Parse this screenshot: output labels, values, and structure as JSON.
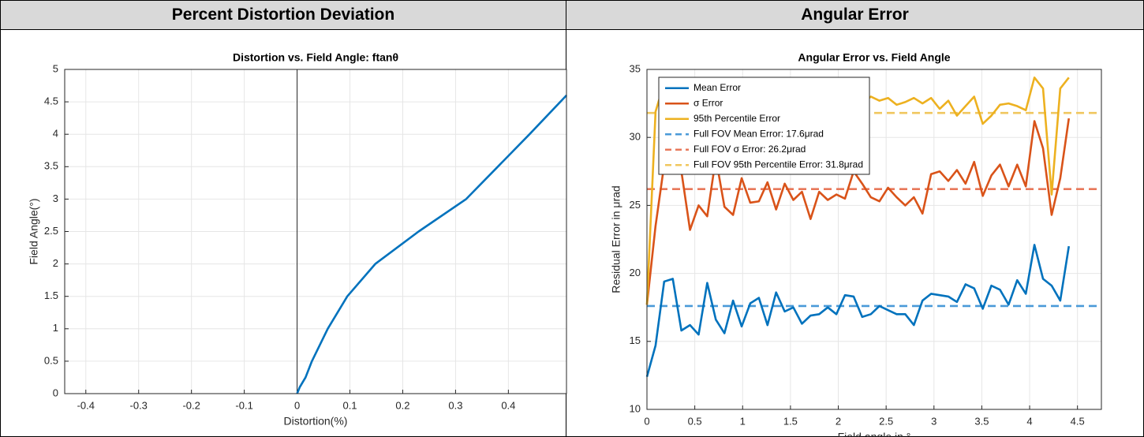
{
  "headers": [
    "Percent Distortion Deviation",
    "Angular Error"
  ],
  "chart_data": [
    {
      "type": "line",
      "title": "Distortion vs. Field Angle: ftanθ",
      "xlabel": "Distortion(%)",
      "ylabel": "Field Angle(°)",
      "x": [
        0,
        0.005,
        0.016,
        0.028,
        0.058,
        0.095,
        0.148,
        0.23,
        0.32,
        0.38,
        0.44,
        0.51
      ],
      "series": [
        {
          "color": "#0072bd",
          "values": [
            0,
            0.1,
            0.25,
            0.5,
            1,
            1.5,
            2,
            2.5,
            3,
            3.5,
            4,
            4.6
          ]
        }
      ],
      "xlim": [
        -0.44,
        0.51
      ],
      "xticks": [
        -0.4,
        -0.3,
        -0.2,
        -0.1,
        0,
        0.1,
        0.2,
        0.3,
        0.4
      ],
      "ylim": [
        0,
        5
      ],
      "yticks": [
        0,
        0.5,
        1,
        1.5,
        2,
        2.5,
        3,
        3.5,
        4,
        4.5,
        5
      ],
      "grid": true
    },
    {
      "type": "line",
      "title": "Angular Error vs. Field Angle",
      "xlabel": "Field angle in °",
      "ylabel": "Residual Error in μrad",
      "x": [
        0,
        0.09,
        0.18,
        0.27,
        0.36,
        0.45,
        0.54,
        0.63,
        0.72,
        0.81,
        0.9,
        0.99,
        1.08,
        1.17,
        1.26,
        1.35,
        1.44,
        1.53,
        1.62,
        1.71,
        1.8,
        1.89,
        1.98,
        2.07,
        2.16,
        2.25,
        2.34,
        2.43,
        2.52,
        2.61,
        2.7,
        2.79,
        2.88,
        2.97,
        3.06,
        3.15,
        3.24,
        3.33,
        3.42,
        3.51,
        3.6,
        3.69,
        3.78,
        3.87,
        3.96,
        4.05,
        4.14,
        4.23,
        4.32,
        4.41
      ],
      "series": [
        {
          "name": "Mean Error",
          "color": "#0072bd",
          "values": [
            12.4,
            14.7,
            19.4,
            19.6,
            15.8,
            16.2,
            15.5,
            19.3,
            16.6,
            15.6,
            18.0,
            16.1,
            17.8,
            18.2,
            16.2,
            18.6,
            17.2,
            17.5,
            16.3,
            16.9,
            17.0,
            17.5,
            17.0,
            18.4,
            18.3,
            16.8,
            17.0,
            17.6,
            17.3,
            17.0,
            17.0,
            16.2,
            18.0,
            18.5,
            18.4,
            18.3,
            17.9,
            19.2,
            18.9,
            17.4,
            19.1,
            18.8,
            17.7,
            19.5,
            18.5,
            22.1,
            19.6,
            19.1,
            18.0,
            22.0
          ]
        },
        {
          "name": "σ Error",
          "color": "#d95319",
          "values": [
            17.7,
            23.5,
            28,
            31,
            27.5,
            23.2,
            25,
            24.2,
            28.5,
            24.9,
            24.3,
            27,
            25.2,
            25.3,
            26.7,
            24.7,
            26.6,
            25.4,
            26,
            24,
            26,
            25.4,
            25.8,
            25.5,
            27.5,
            26.6,
            25.6,
            25.3,
            26.3,
            25.6,
            25,
            25.6,
            24.4,
            27.3,
            27.5,
            26.8,
            27.6,
            26.6,
            28.2,
            25.7,
            27.2,
            28,
            26.4,
            28,
            26.4,
            31.2,
            29.2,
            24.3,
            27,
            31.4
          ]
        },
        {
          "name": "95th Percentile Error",
          "color": "#edb120",
          "values": [
            17.7,
            31.9,
            34,
            33.5,
            32.8,
            33.2,
            33.8,
            32.5,
            33.6,
            32.9,
            33.1,
            32.4,
            33.3,
            32.7,
            33.5,
            32.6,
            33.2,
            32.9,
            32.4,
            33.0,
            32.8,
            33.4,
            32.6,
            33.1,
            32.8,
            32.5,
            33.0,
            32.7,
            32.9,
            32.4,
            32.6,
            32.9,
            32.5,
            32.9,
            32.1,
            32.7,
            31.6,
            32.3,
            33.0,
            31.0,
            31.6,
            32.4,
            32.5,
            32.3,
            32.0,
            34.4,
            33.6,
            25.8,
            33.6,
            34.4
          ]
        }
      ],
      "reference_lines": [
        {
          "name": "Full FOV Mean Error: 17.6μrad",
          "value": 17.6,
          "color": "#4a9ad8"
        },
        {
          "name": "Full FOV σ Error: 26.2μrad",
          "value": 26.2,
          "color": "#e8785a"
        },
        {
          "name": "Full FOV 95th Percentile Error: 31.8μrad",
          "value": 31.8,
          "color": "#f0c75e"
        }
      ],
      "xlim": [
        0,
        4.75
      ],
      "xticks": [
        0,
        0.5,
        1,
        1.5,
        2,
        2.5,
        3,
        3.5,
        4,
        4.5
      ],
      "ylim": [
        10,
        35
      ],
      "yticks": [
        10,
        15,
        20,
        25,
        30,
        35
      ],
      "grid": true,
      "legend": "upper left"
    }
  ]
}
